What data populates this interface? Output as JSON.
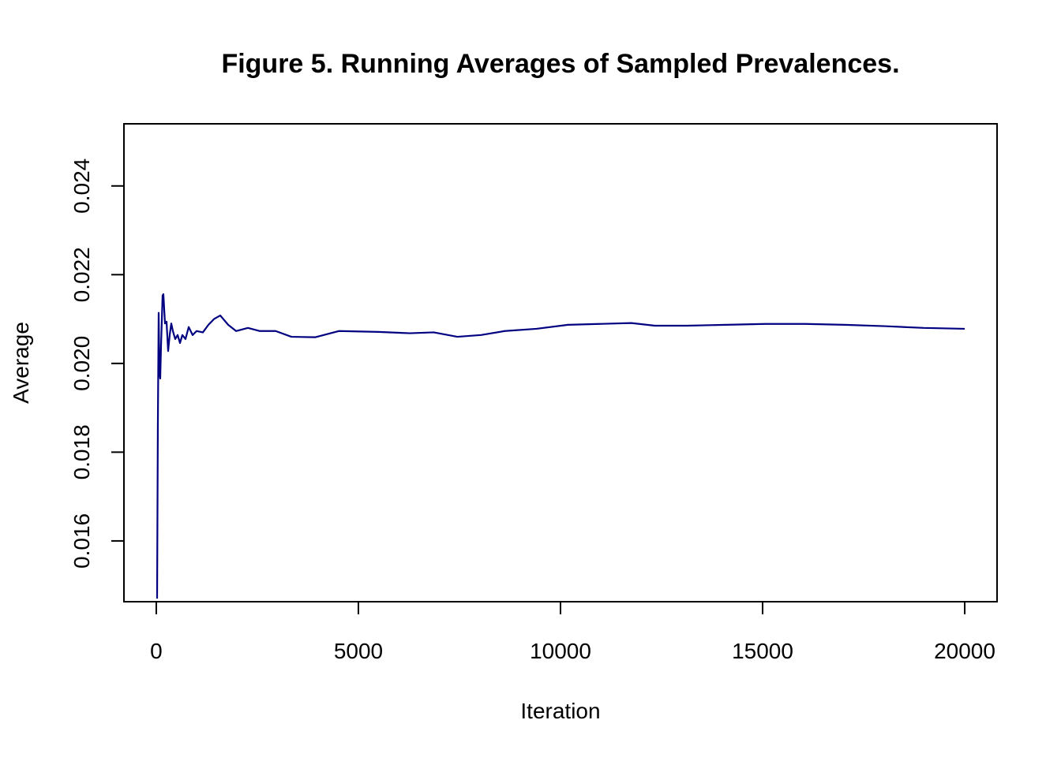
{
  "chart_data": {
    "type": "line",
    "title": "Figure 5. Running Averages of Sampled Prevalences.",
    "xlabel": "Iteration",
    "ylabel": "Average",
    "color": "#000080",
    "x": [
      20,
      39,
      59,
      78,
      98,
      117,
      156,
      176,
      215,
      254,
      293,
      332,
      371,
      411,
      469,
      528,
      587,
      645,
      723,
      802,
      899,
      997,
      1153,
      1290,
      1427,
      1583,
      1779,
      1974,
      2268,
      2561,
      2952,
      3343,
      3930,
      4516,
      5494,
      6276,
      6862,
      7449,
      8035,
      8622,
      9404,
      10186,
      10968,
      11750,
      12336,
      13118,
      14096,
      15073,
      16051,
      17028,
      18006,
      18983,
      20000
    ],
    "values": [
      0.0147,
      0.0186,
      0.02114,
      0.0198,
      0.01966,
      0.02037,
      0.02153,
      0.02156,
      0.0209,
      0.02094,
      0.02028,
      0.02064,
      0.0209,
      0.02073,
      0.02055,
      0.02064,
      0.02046,
      0.02064,
      0.02055,
      0.02082,
      0.02064,
      0.02073,
      0.0207,
      0.02087,
      0.021,
      0.02108,
      0.02087,
      0.02073,
      0.0208,
      0.02073,
      0.02073,
      0.0206,
      0.02059,
      0.02073,
      0.02071,
      0.02068,
      0.0207,
      0.0206,
      0.02064,
      0.02073,
      0.02078,
      0.02087,
      0.02089,
      0.02091,
      0.02085,
      0.02085,
      0.02087,
      0.02089,
      0.02089,
      0.02087,
      0.02084,
      0.0208,
      0.02078
    ],
    "xlim": [
      -800,
      20800
    ],
    "ylim": [
      0.01463,
      0.0254
    ],
    "xticks": [
      0,
      5000,
      10000,
      15000,
      20000
    ],
    "yticks": [
      0.016,
      0.018,
      {
        "value": 0.02,
        "label": "0.020"
      },
      0.022,
      0.024
    ]
  }
}
